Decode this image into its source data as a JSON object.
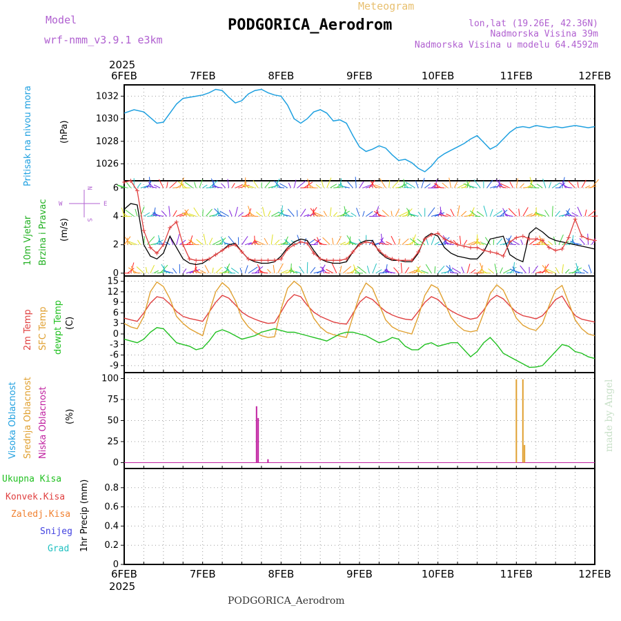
{
  "header": {
    "model_label": "Model",
    "model_name": "wrf-nmm_v3.9.1 e3km",
    "meteogram_label": "Meteogram",
    "station": "PODGORICA_Aerodrom",
    "lonlat": "lon,lat (19.26E, 42.36N)",
    "elevation": "Nadmorska Visina 39m",
    "model_elevation": "Nadmorska Visina u modelu 64.4592m",
    "footer_station": "PODGORICA_Aerodrom",
    "credit": "made by Angel",
    "year_top": "2025",
    "year_bottom": "2025"
  },
  "colors": {
    "pressure": "#1ea0e0",
    "wind_label": "#20b020",
    "temp2m": "#e04040",
    "sfc_temp": "#e0a030",
    "dewpt": "#20c020",
    "high_cloud": "#20a0e0",
    "mid_cloud": "#e0a030",
    "low_cloud": "#c020a0",
    "total_precip": "#20c020",
    "conv_precip": "#e04040",
    "frozen_precip": "#f08030",
    "snow": "#4040e0",
    "hail": "#20c0c0",
    "model_text": "#b060d0",
    "meteogram_text": "#e8c070",
    "credit_text": "#c8e0c8"
  },
  "x_axis": {
    "start_hour": 0,
    "end_hour": 144,
    "ticks": [
      {
        "hour": 0,
        "label": "6FEB"
      },
      {
        "hour": 24,
        "label": "7FEB"
      },
      {
        "hour": 48,
        "label": "8FEB"
      },
      {
        "hour": 72,
        "label": "9FEB"
      },
      {
        "hour": 96,
        "label": "10FEB"
      },
      {
        "hour": 120,
        "label": "11FEB"
      },
      {
        "hour": 144,
        "label": "12FEB"
      }
    ]
  },
  "chart_data": [
    {
      "type": "line",
      "name": "pressure",
      "label": "Pritisak na nivou mora",
      "unit_label": "(hPa)",
      "ylim": [
        1024.5,
        1033.0
      ],
      "yticks": [
        1026,
        1028,
        1030,
        1032
      ],
      "x": [
        0,
        3,
        6,
        8,
        10,
        12,
        14,
        16,
        18,
        20,
        22,
        24,
        26,
        28,
        30,
        32,
        34,
        36,
        38,
        40,
        42,
        44,
        46,
        48,
        50,
        52,
        54,
        56,
        58,
        60,
        62,
        64,
        66,
        68,
        70,
        72,
        74,
        76,
        78,
        80,
        82,
        84,
        86,
        88,
        90,
        92,
        94,
        96,
        98,
        100,
        102,
        104,
        106,
        108,
        110,
        112,
        114,
        116,
        118,
        120,
        122,
        124,
        126,
        128,
        130,
        132,
        134,
        136,
        138,
        140,
        142,
        144
      ],
      "values": [
        1030.5,
        1030.8,
        1030.6,
        1030.1,
        1029.6,
        1029.7,
        1030.5,
        1031.3,
        1031.8,
        1031.9,
        1032.0,
        1032.1,
        1032.3,
        1032.6,
        1032.5,
        1031.9,
        1031.4,
        1031.6,
        1032.2,
        1032.5,
        1032.6,
        1032.3,
        1032.1,
        1032.0,
        1031.2,
        1030.0,
        1029.6,
        1030.0,
        1030.6,
        1030.8,
        1030.5,
        1029.8,
        1029.9,
        1029.6,
        1028.5,
        1027.5,
        1027.1,
        1027.3,
        1027.6,
        1027.4,
        1026.8,
        1026.3,
        1026.4,
        1026.1,
        1025.6,
        1025.3,
        1025.8,
        1026.5,
        1026.9,
        1027.2,
        1027.5,
        1027.8,
        1028.2,
        1028.5,
        1027.9,
        1027.3,
        1027.6,
        1028.2,
        1028.8,
        1029.2,
        1029.3,
        1029.2,
        1029.4,
        1029.3,
        1029.2,
        1029.3,
        1029.2,
        1029.3,
        1029.4,
        1029.3,
        1029.2,
        1029.3
      ]
    },
    {
      "type": "line",
      "name": "wind",
      "label_line1": "10m Vjetar",
      "label_line2": "Brzina i Pravac",
      "unit_label": "(m/s)",
      "compass": {
        "n": "N",
        "s": "S",
        "w": "W",
        "e": "E"
      },
      "ylim": [
        -0.2,
        6.5
      ],
      "yticks": [
        0,
        2,
        4,
        6
      ],
      "x": [
        0,
        2,
        4,
        6,
        8,
        10,
        12,
        14,
        16,
        18,
        20,
        22,
        24,
        26,
        28,
        30,
        32,
        34,
        36,
        38,
        40,
        42,
        44,
        46,
        48,
        50,
        52,
        54,
        56,
        58,
        60,
        62,
        64,
        66,
        68,
        70,
        72,
        74,
        76,
        78,
        80,
        82,
        84,
        86,
        88,
        90,
        92,
        94,
        96,
        98,
        100,
        102,
        104,
        106,
        108,
        110,
        112,
        114,
        116,
        118,
        120,
        122,
        124,
        126,
        128,
        130,
        132,
        134,
        136,
        138,
        140,
        142,
        144
      ],
      "series": [
        {
          "name": "model speed",
          "color": "#000000",
          "values": [
            4.5,
            4.9,
            4.8,
            2.0,
            1.2,
            1.0,
            1.4,
            2.6,
            1.8,
            1.0,
            0.7,
            0.6,
            0.7,
            1.0,
            1.3,
            1.6,
            2.0,
            2.1,
            1.5,
            1.0,
            0.8,
            0.7,
            0.7,
            0.8,
            1.2,
            1.8,
            2.2,
            2.4,
            2.3,
            1.6,
            1.0,
            0.8,
            0.7,
            0.7,
            0.8,
            1.5,
            2.1,
            2.3,
            2.3,
            1.5,
            1.1,
            0.9,
            0.9,
            0.8,
            0.8,
            1.4,
            2.5,
            2.8,
            2.6,
            1.8,
            1.4,
            1.2,
            1.1,
            1.0,
            1.0,
            1.5,
            2.4,
            2.5,
            2.6,
            1.3,
            1.0,
            0.8,
            2.8,
            3.2,
            2.9,
            2.5,
            2.3,
            2.2,
            2.1,
            2.0,
            1.9,
            1.8,
            1.7
          ]
        },
        {
          "name": "gust marker",
          "color": "#e04040",
          "values": [
            6.4,
            6.5,
            5.8,
            3.0,
            1.8,
            1.4,
            2.0,
            3.2,
            3.6,
            2.0,
            1.0,
            0.9,
            0.9,
            1.0,
            1.3,
            1.6,
            1.9,
            2.0,
            1.5,
            1.0,
            0.9,
            0.9,
            0.9,
            0.9,
            1.0,
            1.7,
            2.0,
            2.2,
            2.1,
            1.4,
            1.0,
            0.9,
            0.9,
            0.9,
            1.0,
            1.5,
            2.0,
            2.2,
            2.1,
            1.6,
            1.2,
            1.0,
            0.9,
            0.9,
            0.9,
            1.5,
            2.4,
            2.7,
            2.8,
            2.4,
            2.2,
            2.0,
            1.9,
            1.8,
            1.8,
            1.6,
            1.5,
            1.4,
            1.2,
            2.2,
            2.5,
            2.6,
            2.4,
            2.4,
            2.3,
            1.8,
            1.6,
            1.7,
            2.5,
            3.8,
            2.6,
            2.4,
            2.3
          ]
        }
      ],
      "arrow_rows_speed": [
        0,
        2,
        4,
        6
      ]
    },
    {
      "type": "line",
      "name": "temperature",
      "label_2m": "2m Temp",
      "label_sfc": "SFC Temp",
      "label_dew": "dewpt Temp",
      "unit_label": "(C)",
      "ylim": [
        -11,
        16.5
      ],
      "yticks": [
        -9,
        -6,
        -3,
        0,
        3,
        6,
        9,
        12,
        15
      ],
      "x": [
        0,
        2,
        4,
        6,
        8,
        10,
        12,
        14,
        16,
        18,
        20,
        22,
        24,
        26,
        28,
        30,
        32,
        34,
        36,
        38,
        40,
        42,
        44,
        46,
        48,
        50,
        52,
        54,
        56,
        58,
        60,
        62,
        64,
        66,
        68,
        70,
        72,
        74,
        76,
        78,
        80,
        82,
        84,
        86,
        88,
        90,
        92,
        94,
        96,
        98,
        100,
        102,
        104,
        106,
        108,
        110,
        112,
        114,
        116,
        118,
        120,
        122,
        124,
        126,
        128,
        130,
        132,
        134,
        136,
        138,
        140,
        142,
        144
      ],
      "series": [
        {
          "name": "2m Temp",
          "color": "#e04040",
          "values": [
            4.5,
            4.0,
            3.6,
            6.0,
            8.8,
            10.6,
            10.2,
            8.5,
            6.4,
            5.0,
            4.4,
            4.0,
            3.6,
            6.2,
            9.0,
            11.0,
            10.2,
            8.3,
            6.2,
            5.0,
            4.2,
            3.5,
            3.0,
            3.2,
            6.2,
            9.4,
            11.2,
            10.6,
            8.2,
            6.2,
            5.0,
            4.2,
            3.4,
            3.0,
            2.8,
            5.8,
            9.0,
            10.6,
            9.8,
            8.0,
            6.4,
            5.4,
            4.7,
            4.2,
            4.0,
            6.4,
            9.0,
            10.6,
            9.8,
            8.0,
            6.6,
            5.6,
            4.8,
            4.2,
            4.6,
            6.8,
            9.6,
            11.0,
            10.0,
            8.0,
            6.2,
            5.2,
            4.8,
            4.3,
            5.2,
            7.4,
            9.8,
            10.8,
            7.8,
            5.2,
            4.2,
            3.8,
            3.4
          ]
        },
        {
          "name": "SFC Temp",
          "color": "#e0a030",
          "values": [
            3.0,
            2.0,
            1.5,
            5.0,
            12.0,
            14.8,
            13.5,
            10.0,
            5.0,
            3.0,
            1.5,
            0.5,
            -0.5,
            6.0,
            12.0,
            14.6,
            13.0,
            9.5,
            4.5,
            2.0,
            0.5,
            -0.5,
            -1.0,
            -0.8,
            7.0,
            13.0,
            15.0,
            13.5,
            9.0,
            4.5,
            2.0,
            0.5,
            -0.2,
            -0.6,
            -1.0,
            5.0,
            11.0,
            14.5,
            13.0,
            8.5,
            4.0,
            2.0,
            1.0,
            0.5,
            0.0,
            5.0,
            11.0,
            14.0,
            13.0,
            9.0,
            4.8,
            2.5,
            1.0,
            0.6,
            1.0,
            6.0,
            11.5,
            14.0,
            12.5,
            8.5,
            4.5,
            2.5,
            1.5,
            1.0,
            3.0,
            8.0,
            12.5,
            13.8,
            9.0,
            4.0,
            1.5,
            0.0,
            -0.5
          ]
        },
        {
          "name": "dewpt Temp",
          "color": "#20c020",
          "values": [
            -1.5,
            -2.0,
            -2.5,
            -1.5,
            0.5,
            1.8,
            1.5,
            -0.5,
            -2.5,
            -3.0,
            -3.5,
            -4.5,
            -4.0,
            -2.0,
            0.5,
            1.2,
            0.5,
            -0.5,
            -1.5,
            -1.0,
            -0.5,
            0.5,
            1.0,
            1.5,
            1.0,
            0.5,
            0.5,
            0.0,
            -0.5,
            -1.0,
            -1.5,
            -2.0,
            -1.0,
            0.0,
            0.5,
            0.5,
            0.0,
            -0.5,
            -1.5,
            -2.5,
            -2.0,
            -1.0,
            -1.5,
            -3.5,
            -4.5,
            -4.5,
            -3.0,
            -2.5,
            -3.5,
            -3.0,
            -2.5,
            -2.5,
            -4.5,
            -6.5,
            -5.0,
            -2.5,
            -1.0,
            -3.0,
            -5.5,
            -6.5,
            -7.5,
            -8.5,
            -9.5,
            -9.4,
            -9.0,
            -7.0,
            -5.0,
            -3.0,
            -3.5,
            -5.0,
            -5.5,
            -6.5,
            -7.0
          ]
        }
      ]
    },
    {
      "type": "bar",
      "name": "cloud",
      "label_high": "Visoka Oblacnost",
      "label_mid": "Srednja Oblacnost",
      "label_low": "Niska Oblacnost",
      "unit_label": "(%)",
      "ylim": [
        -7,
        107
      ],
      "yticks": [
        0,
        25,
        50,
        75,
        100
      ],
      "bars": [
        {
          "hour": 40.5,
          "value": 67,
          "series": "low"
        },
        {
          "hour": 41.0,
          "value": 53,
          "series": "low"
        },
        {
          "hour": 44.0,
          "value": 4,
          "series": "low"
        },
        {
          "hour": 120.0,
          "value": 99,
          "series": "mid"
        },
        {
          "hour": 122.0,
          "value": 99,
          "series": "mid"
        },
        {
          "hour": 122.5,
          "value": 21,
          "series": "mid"
        }
      ]
    },
    {
      "type": "bar",
      "name": "precipitation",
      "label_total": "Ukupna Kisa",
      "label_conv": "Konvek.Kisa",
      "label_frozen": "Zaledj.Kisa",
      "label_snow": "Snijeg",
      "label_hail": "Grad",
      "unit_label": "1hr Precip (mm)",
      "ylim": [
        0,
        1.0
      ],
      "yticks": [
        0,
        0.2,
        0.4,
        0.6,
        0.8
      ],
      "values": []
    }
  ]
}
